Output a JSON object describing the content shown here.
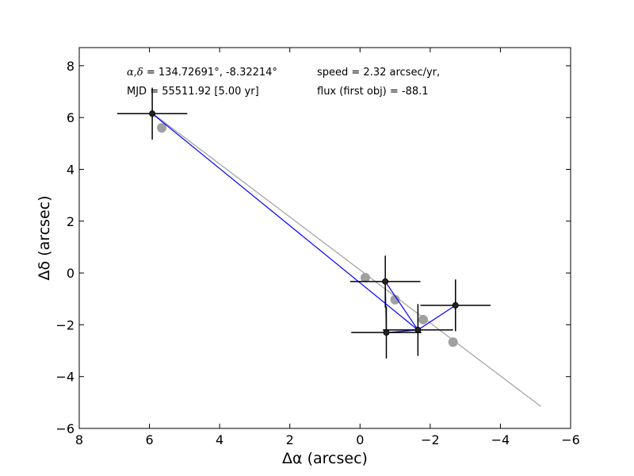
{
  "chart_data": {
    "type": "scatter",
    "xlabel": "Δα (arcsec)",
    "ylabel": "Δδ (arcsec)",
    "xlim": [
      8,
      -6
    ],
    "ylim": [
      -6,
      8.7
    ],
    "x_ticks": [
      8,
      6,
      4,
      2,
      0,
      -2,
      -4,
      -6
    ],
    "x_tick_labels": [
      "8",
      "6",
      "4",
      "2",
      "0",
      "−2",
      "−4",
      "−6"
    ],
    "y_ticks": [
      8,
      6,
      4,
      2,
      0,
      -2,
      -4,
      -6
    ],
    "y_tick_labels": [
      "8",
      "6",
      "4",
      "2",
      "0",
      "−2",
      "−4",
      "−6"
    ],
    "grid": false,
    "annotations": {
      "coord_symbols": "α,δ",
      "coord_values": " = 134.72691°, -8.32214°",
      "mjd": "MJD = 55511.92 [5.00 yr]",
      "speed": "speed = 2.32 arcsec/yr,",
      "flux": "flux (first obj) = -88.1"
    },
    "fit_line": {
      "color": "#a0a0a0",
      "x": [
        5.9,
        -5.15
      ],
      "y": [
        6.15,
        -5.15
      ]
    },
    "model_points": {
      "color": "#a0a0a0",
      "x": [
        5.65,
        -0.15,
        -1.0,
        -1.8,
        -2.65
      ],
      "y": [
        5.6,
        -0.18,
        -1.03,
        -1.8,
        -2.67
      ]
    },
    "observations": {
      "color": "#0000ff",
      "marker_color": "#222222",
      "points": [
        {
          "x": 5.92,
          "y": 6.15,
          "xerr": 1.0,
          "yerr": 1.0
        },
        {
          "x": -0.72,
          "y": -0.33,
          "xerr": 1.0,
          "yerr": 1.0
        },
        {
          "x": -1.65,
          "y": -2.2,
          "xerr": 1.0,
          "yerr": 1.0
        },
        {
          "x": -0.75,
          "y": -2.3,
          "xerr": 1.0,
          "yerr": 1.0
        },
        {
          "x": -2.72,
          "y": -1.25,
          "xerr": 1.0,
          "yerr": 1.0
        }
      ],
      "path_order": [
        0,
        2,
        1,
        3,
        2,
        4
      ]
    }
  }
}
